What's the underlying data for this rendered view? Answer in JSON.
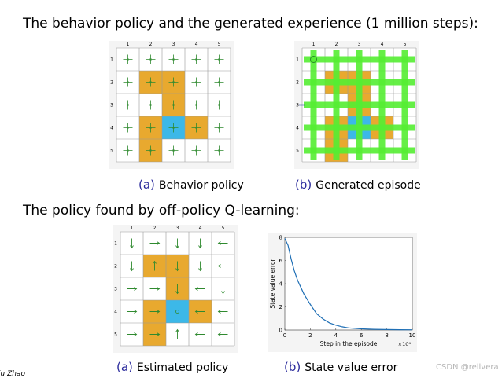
{
  "headings": {
    "top": "The behavior policy and the generated experience (1 million steps):",
    "middle": "The policy found by off-policy Q-learning:"
  },
  "captions": {
    "a1_label": "(a)",
    "a1_text": "Behavior policy",
    "b1_label": "(b)",
    "b1_text": "Generated episode",
    "a2_label": "(a)",
    "a2_text": "Estimated policy",
    "b2_label": "(b)",
    "b2_text": "State value error"
  },
  "grid": {
    "col_labels": [
      "1",
      "2",
      "3",
      "4",
      "5"
    ],
    "row_labels": [
      "1",
      "2",
      "3",
      "4",
      "5"
    ],
    "forbidden": [
      [
        2,
        2
      ],
      [
        2,
        3
      ],
      [
        3,
        3
      ],
      [
        4,
        2
      ],
      [
        4,
        4
      ],
      [
        5,
        2
      ]
    ],
    "target": [
      4,
      3
    ],
    "colors": {
      "forbidden": "#e8a92f",
      "target": "#3cb8e8",
      "arrow": "#2f8a2f",
      "episode": "#55ee33"
    }
  },
  "estimated_policy": [
    [
      "down",
      "right",
      "down",
      "down",
      "left"
    ],
    [
      "down",
      "up",
      "down",
      "down",
      "left"
    ],
    [
      "right",
      "right",
      "down",
      "left",
      "down"
    ],
    [
      "right",
      "right",
      "stay",
      "left",
      "left"
    ],
    [
      "right",
      "right",
      "up",
      "left",
      "left"
    ]
  ],
  "chart_data": {
    "type": "line",
    "ylabel": "State value error",
    "xlabel": "Step in the episode",
    "x_exponent": "×10⁴",
    "xlim": [
      0,
      10
    ],
    "ylim": [
      0,
      8
    ],
    "xticks": [
      "0",
      "2",
      "4",
      "6",
      "8",
      "10"
    ],
    "yticks": [
      "0",
      "2",
      "4",
      "6",
      "8"
    ],
    "series": [
      {
        "x": [
          0,
          0.25,
          0.5,
          0.75,
          1,
          1.5,
          2,
          2.5,
          3,
          3.5,
          4,
          4.5,
          5,
          6,
          7,
          8,
          9,
          10
        ],
        "y": [
          7.9,
          7.3,
          6.1,
          5.1,
          4.3,
          3.1,
          2.2,
          1.4,
          0.95,
          0.62,
          0.42,
          0.28,
          0.18,
          0.1,
          0.06,
          0.04,
          0.03,
          0.02
        ]
      }
    ]
  },
  "footer": {
    "author": "iu Zhao",
    "watermark": "CSDN @rellvera"
  }
}
